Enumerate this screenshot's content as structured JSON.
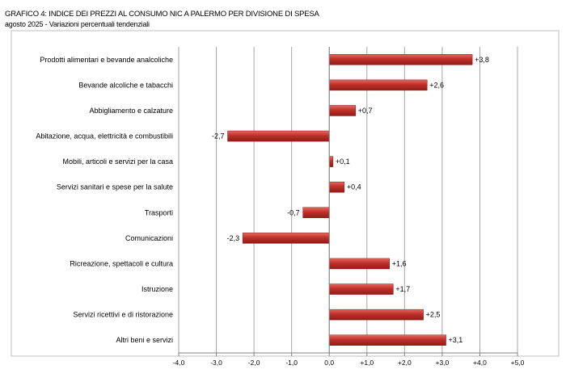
{
  "title": "GRAFICO 4: INDICE DEI PREZZI AL CONSUMO NIC A PALERMO PER DIVISIONE DI SPESA",
  "subtitle": "agosto 2025 - Variazioni percentuali tendenziali",
  "chart_data": {
    "type": "bar",
    "orientation": "horizontal",
    "categories": [
      "Prodotti alimentari e bevande analcoliche",
      "Bevande alcoliche e tabacchi",
      "Abbigliamento e calzature",
      "Abitazione, acqua, elettricità e combustibili",
      "Mobili, articoli e servizi per la casa",
      "Servizi sanitari e spese per la salute",
      "Trasporti",
      "Comunicazioni",
      "Ricreazione, spettacoli e cultura",
      "Istruzione",
      "Servizi ricettivi e di ristorazione",
      "Altri beni e servizi"
    ],
    "values": [
      3.8,
      2.6,
      0.7,
      -2.7,
      0.1,
      0.4,
      -0.7,
      -2.3,
      1.6,
      1.7,
      2.5,
      3.1
    ],
    "data_labels": [
      "+3,8",
      "+2,6",
      "+0,7",
      "-2,7",
      "+0,1",
      "+0,4",
      "-0,7",
      "-2,3",
      "+1,6",
      "+1,7",
      "+2,5",
      "+3,1"
    ],
    "xlim": [
      -4.0,
      5.0
    ],
    "xticks": [
      -4.0,
      -3.0,
      -2.0,
      -1.0,
      0.0,
      1.0,
      2.0,
      3.0,
      4.0,
      5.0
    ],
    "xtick_labels": [
      "-4,0",
      "-3,0",
      "-2,0",
      "-1,0",
      "0,0",
      "+1,0",
      "+2,0",
      "+3,0",
      "+4,0",
      "+5,0"
    ],
    "grid": "vertical",
    "bar_color": "#c0302a",
    "bar_color_light": "#e26a60",
    "bar_color_dark": "#8e1c17"
  }
}
